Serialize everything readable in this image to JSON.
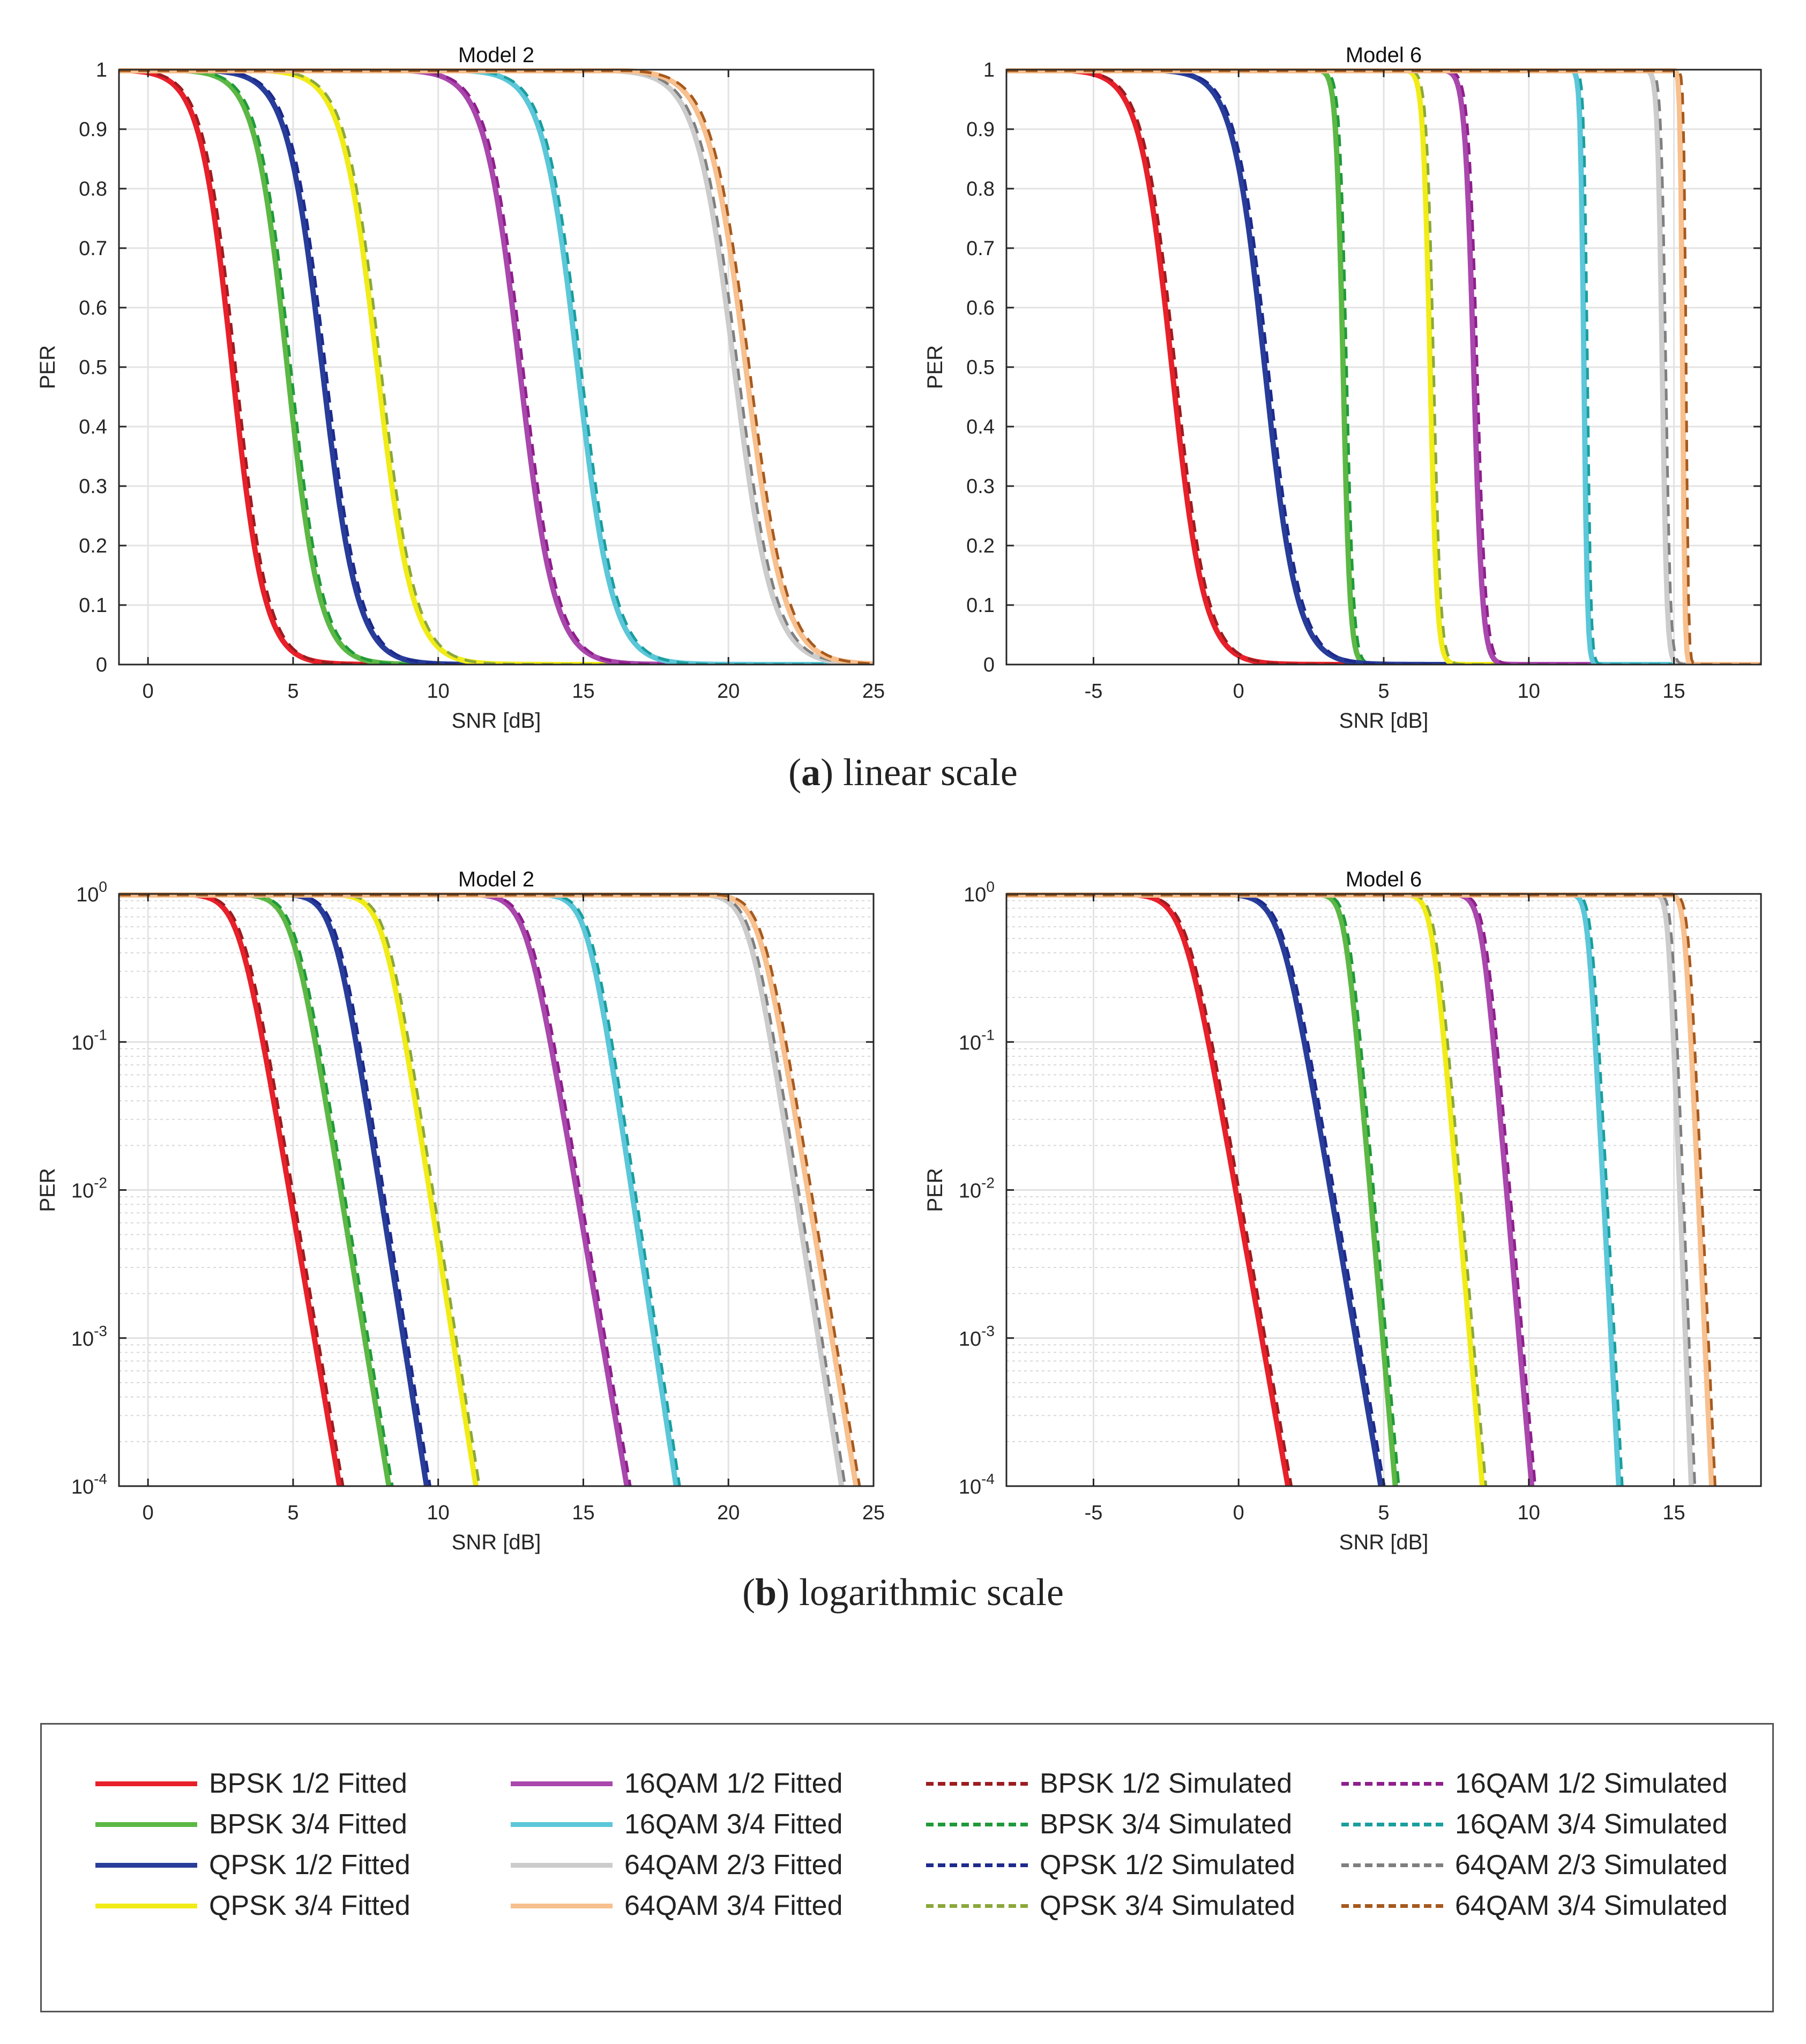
{
  "captions": {
    "a_letter": "a",
    "a_text": "linear scale",
    "b_letter": "b",
    "b_text": "logarithmic scale"
  },
  "legend": [
    {
      "label": "BPSK 1/2 Fitted",
      "color": "#e8202a",
      "style": "solid"
    },
    {
      "label": "BPSK 3/4 Fitted",
      "color": "#5cb845",
      "style": "solid"
    },
    {
      "label": "QPSK 1/2 Fitted",
      "color": "#283d9a",
      "style": "solid"
    },
    {
      "label": "QPSK 3/4 Fitted",
      "color": "#f1ec18",
      "style": "solid"
    },
    {
      "label": "16QAM 1/2 Fitted",
      "color": "#a947ad",
      "style": "solid"
    },
    {
      "label": "16QAM 3/4 Fitted",
      "color": "#5bc7d9",
      "style": "solid"
    },
    {
      "label": "64QAM 2/3 Fitted",
      "color": "#cccccc",
      "style": "solid"
    },
    {
      "label": "64QAM 3/4 Fitted",
      "color": "#f7c08e",
      "style": "solid"
    },
    {
      "label": "BPSK 1/2 Simulated",
      "color": "#9d1c20",
      "style": "dashed"
    },
    {
      "label": "BPSK 3/4 Simulated",
      "color": "#1f9a3a",
      "style": "dashed"
    },
    {
      "label": "QPSK 1/2 Simulated",
      "color": "#1d2a8c",
      "style": "dashed"
    },
    {
      "label": "QPSK 3/4 Simulated",
      "color": "#8aa83a",
      "style": "dashed"
    },
    {
      "label": "16QAM 1/2 Simulated",
      "color": "#8e1f8c",
      "style": "dashed"
    },
    {
      "label": "16QAM 3/4 Simulated",
      "color": "#1a9e9e",
      "style": "dashed"
    },
    {
      "label": "64QAM 2/3 Simulated",
      "color": "#7f7f7f",
      "style": "dashed"
    },
    {
      "label": "64QAM 3/4 Simulated",
      "color": "#a65a1e",
      "style": "dashed"
    }
  ],
  "chart_data": [
    {
      "type": "line",
      "title": "Model 2",
      "panel": "a",
      "xlabel": "SNR [dB]",
      "ylabel": "PER",
      "yscale": "linear",
      "xlim": [
        -1,
        25
      ],
      "ylim": [
        0,
        1
      ],
      "xticks": [
        "0",
        "5",
        "10",
        "15",
        "20",
        "25"
      ],
      "yticks": [
        "0",
        "0.1",
        "0.2",
        "0.3",
        "0.4",
        "0.5",
        "0.6",
        "0.7",
        "0.8",
        "0.9",
        "1"
      ],
      "grid": true,
      "series": [
        {
          "name": "BPSK 1/2",
          "snr_at_per_0.5": 2.9,
          "slope_db": 0.55
        },
        {
          "name": "BPSK 3/4",
          "snr_at_per_0.5": 4.8,
          "slope_db": 0.55
        },
        {
          "name": "QPSK 1/2",
          "snr_at_per_0.5": 6.0,
          "slope_db": 0.6
        },
        {
          "name": "QPSK 3/4",
          "snr_at_per_0.5": 7.9,
          "slope_db": 0.6
        },
        {
          "name": "16QAM 1/2",
          "snr_at_per_0.5": 12.8,
          "slope_db": 0.6
        },
        {
          "name": "16QAM 3/4",
          "snr_at_per_0.5": 14.8,
          "slope_db": 0.6
        },
        {
          "name": "64QAM 2/3",
          "snr_at_per_0.5": 20.2,
          "slope_db": 0.65
        },
        {
          "name": "64QAM 3/4",
          "snr_at_per_0.5": 20.6,
          "slope_db": 0.65
        }
      ]
    },
    {
      "type": "line",
      "title": "Model 6",
      "panel": "a",
      "xlabel": "SNR [dB]",
      "ylabel": "PER",
      "yscale": "linear",
      "xlim": [
        -8,
        18
      ],
      "ylim": [
        0,
        1
      ],
      "xticks": [
        "-5",
        "0",
        "5",
        "10",
        "15"
      ],
      "yticks": [
        "0",
        "0.1",
        "0.2",
        "0.3",
        "0.4",
        "0.5",
        "0.6",
        "0.7",
        "0.8",
        "0.9",
        "1"
      ],
      "grid": true,
      "series": [
        {
          "name": "BPSK 1/2",
          "snr_at_per_0.5": -2.3,
          "slope_db": 0.55
        },
        {
          "name": "BPSK 3/4",
          "snr_at_per_0.5": 3.6,
          "slope_db": 0.12
        },
        {
          "name": "QPSK 1/2",
          "snr_at_per_0.5": 0.9,
          "slope_db": 0.55
        },
        {
          "name": "QPSK 3/4",
          "snr_at_per_0.5": 6.6,
          "slope_db": 0.12
        },
        {
          "name": "16QAM 1/2",
          "snr_at_per_0.5": 8.1,
          "slope_db": 0.15
        },
        {
          "name": "16QAM 3/4",
          "snr_at_per_0.5": 11.9,
          "slope_db": 0.06
        },
        {
          "name": "64QAM 2/3",
          "snr_at_per_0.5": 14.6,
          "slope_db": 0.08
        },
        {
          "name": "64QAM 3/4",
          "snr_at_per_0.5": 15.3,
          "slope_db": 0.04
        }
      ]
    },
    {
      "type": "line",
      "title": "Model 2",
      "panel": "b",
      "xlabel": "SNR [dB]",
      "ylabel": "PER",
      "yscale": "log",
      "xlim": [
        -1,
        25
      ],
      "ylim": [
        0.0001,
        1
      ],
      "xticks": [
        "0",
        "5",
        "10",
        "15",
        "20",
        "25"
      ],
      "yticks": [
        {
          "base": "10",
          "exp": "-4"
        },
        {
          "base": "10",
          "exp": "-3"
        },
        {
          "base": "10",
          "exp": "-2"
        },
        {
          "base": "10",
          "exp": "-1"
        },
        {
          "base": "10",
          "exp": "0"
        }
      ],
      "grid": true,
      "series": [
        {
          "name": "BPSK 1/2",
          "snr_at_per_0.1": 4.0,
          "snr_at_per_0.0001": 6.6
        },
        {
          "name": "BPSK 3/4",
          "snr_at_per_0.1": 5.8,
          "snr_at_per_0.0001": 8.3
        },
        {
          "name": "QPSK 1/2",
          "snr_at_per_0.1": 7.2,
          "snr_at_per_0.0001": 9.6
        },
        {
          "name": "QPSK 3/4",
          "snr_at_per_0.1": 8.9,
          "snr_at_per_0.0001": 11.3
        },
        {
          "name": "16QAM 1/2",
          "snr_at_per_0.1": 13.9,
          "snr_at_per_0.0001": 16.5
        },
        {
          "name": "16QAM 3/4",
          "snr_at_per_0.1": 15.9,
          "snr_at_per_0.0001": 18.2
        },
        {
          "name": "64QAM 2/3",
          "snr_at_per_0.1": 21.5,
          "snr_at_per_0.0001": 23.9
        },
        {
          "name": "64QAM 3/4",
          "snr_at_per_0.1": 21.9,
          "snr_at_per_0.0001": 24.4
        }
      ]
    },
    {
      "type": "line",
      "title": "Model 6",
      "panel": "b",
      "xlabel": "SNR [dB]",
      "ylabel": "PER",
      "yscale": "log",
      "xlim": [
        -8,
        18
      ],
      "ylim": [
        0.0001,
        1
      ],
      "xticks": [
        "-5",
        "0",
        "5",
        "10",
        "15"
      ],
      "yticks": [
        {
          "base": "10",
          "exp": "-4"
        },
        {
          "base": "10",
          "exp": "-3"
        },
        {
          "base": "10",
          "exp": "-2"
        },
        {
          "base": "10",
          "exp": "-1"
        },
        {
          "base": "10",
          "exp": "0"
        }
      ],
      "grid": true,
      "series": [
        {
          "name": "BPSK 1/2",
          "snr_at_per_0.1": -1.0,
          "snr_at_per_0.0001": 1.7
        },
        {
          "name": "BPSK 3/4",
          "snr_at_per_0.1": 4.1,
          "snr_at_per_0.0001": 5.4
        },
        {
          "name": "QPSK 1/2",
          "snr_at_per_0.1": 2.3,
          "snr_at_per_0.0001": 4.9
        },
        {
          "name": "QPSK 3/4",
          "snr_at_per_0.1": 7.1,
          "snr_at_per_0.0001": 8.4
        },
        {
          "name": "16QAM 1/2",
          "snr_at_per_0.1": 8.8,
          "snr_at_per_0.0001": 10.1
        },
        {
          "name": "16QAM 3/4",
          "snr_at_per_0.1": 12.3,
          "snr_at_per_0.0001": 13.1
        },
        {
          "name": "64QAM 2/3",
          "snr_at_per_0.1": 15.0,
          "snr_at_per_0.0001": 15.6
        },
        {
          "name": "64QAM 3/4",
          "snr_at_per_0.1": 15.6,
          "snr_at_per_0.0001": 16.3
        }
      ]
    }
  ]
}
